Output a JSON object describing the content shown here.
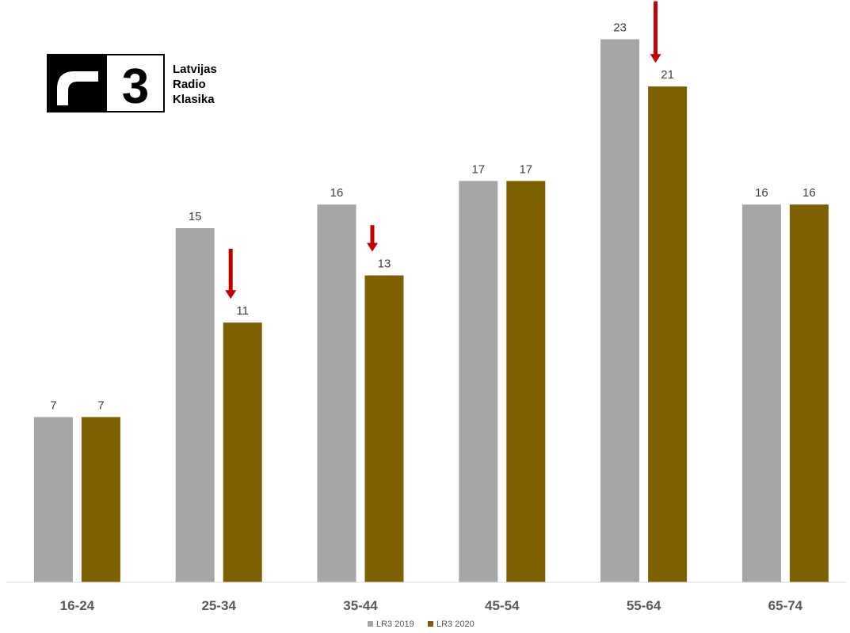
{
  "logo": {
    "mark": "3",
    "lines": [
      "Latvijas",
      "Radio",
      "Klasika"
    ]
  },
  "chart_data": {
    "type": "bar",
    "categories": [
      "16-24",
      "25-34",
      "35-44",
      "45-54",
      "55-64",
      "65-74"
    ],
    "series": [
      {
        "name": "LR3 2019",
        "values": [
          7,
          15,
          16,
          17,
          23,
          16
        ],
        "color": "#a6a6a6"
      },
      {
        "name": "LR3 2020",
        "values": [
          7,
          11,
          13,
          17,
          21,
          16
        ],
        "color": "#7f6000"
      }
    ],
    "ylim": [
      0,
      23
    ],
    "grid": false,
    "legend": "bottom-center",
    "annotations": [
      {
        "type": "down-arrow",
        "category": "25-34",
        "color": "#c00000"
      },
      {
        "type": "down-arrow",
        "category": "35-44",
        "color": "#c00000"
      },
      {
        "type": "down-arrow",
        "category": "55-64",
        "color": "#c00000"
      }
    ]
  }
}
